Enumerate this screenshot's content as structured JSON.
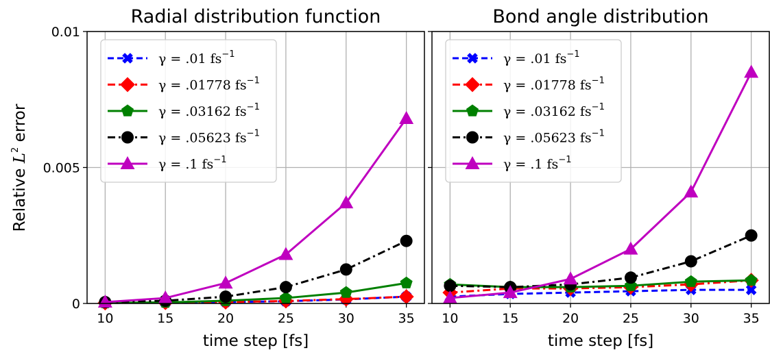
{
  "ylabel": "Relative",
  "ylabel_math": "L",
  "ylabel_sup": "2",
  "ylabel_tail": " error",
  "chart_data": [
    {
      "type": "line",
      "title": "Radial distribution function",
      "xlabel": "time step [fs]",
      "ylabel": "Relative L^2 error",
      "x": [
        10,
        15,
        20,
        25,
        30,
        35
      ],
      "xlim": [
        8.5,
        36.5
      ],
      "ylim": [
        0,
        0.01
      ],
      "xticks": [
        10,
        15,
        20,
        25,
        30,
        35
      ],
      "yticks": [
        0,
        0.005,
        0.01
      ],
      "ytick_labels": [
        "0",
        "0.005",
        "0.01"
      ],
      "grid": true,
      "legend_position": "top-left",
      "series": [
        {
          "name": "γ = .01 fs",
          "unit_sup": "−1",
          "color": "#0000ff",
          "dash": "9,5",
          "marker": "x",
          "values": [
            2e-05,
            3e-05,
            5e-05,
            8e-05,
            0.00015,
            0.00025
          ]
        },
        {
          "name": "γ = .01778 fs",
          "unit_sup": "−1",
          "color": "#ff0000",
          "dash": "11,5,3,5",
          "marker": "diamond",
          "values": [
            2e-05,
            3e-05,
            5e-05,
            9e-05,
            0.00016,
            0.00025
          ]
        },
        {
          "name": "γ = .03162 fs",
          "unit_sup": "−1",
          "color": "#008000",
          "dash": "",
          "marker": "pentagon",
          "values": [
            2e-05,
            4e-05,
            0.0001,
            0.0002,
            0.0004,
            0.00075
          ]
        },
        {
          "name": "γ = .05623 fs",
          "unit_sup": "−1",
          "color": "#000000",
          "dash": "11,5,3,5",
          "marker": "circle",
          "values": [
            5e-05,
            0.0001,
            0.00025,
            0.0006,
            0.00125,
            0.0023
          ]
        },
        {
          "name": "γ = .1 fs",
          "unit_sup": "−1",
          "color": "#bf00bf",
          "dash": "",
          "marker": "triangle",
          "values": [
            5e-05,
            0.0002,
            0.00075,
            0.0018,
            0.0037,
            0.0068
          ]
        }
      ]
    },
    {
      "type": "line",
      "title": "Bond angle distribution",
      "xlabel": "time step [fs]",
      "ylabel": "",
      "x": [
        10,
        15,
        20,
        25,
        30,
        35
      ],
      "xlim": [
        8.5,
        36.5
      ],
      "ylim": [
        0,
        0.01
      ],
      "xticks": [
        10,
        15,
        20,
        25,
        30,
        35
      ],
      "yticks": [
        0,
        0.005,
        0.01
      ],
      "ytick_labels": [],
      "grid": true,
      "legend_position": "top-left",
      "series": [
        {
          "name": "γ = .01 fs",
          "unit_sup": "−1",
          "color": "#0000ff",
          "dash": "9,5",
          "marker": "x",
          "values": [
            0.00025,
            0.00035,
            0.0004,
            0.00045,
            0.0005,
            0.0005
          ]
        },
        {
          "name": "γ = .01778 fs",
          "unit_sup": "−1",
          "color": "#ff0000",
          "dash": "11,5,3,5",
          "marker": "diamond",
          "values": [
            0.0004,
            0.00055,
            0.00055,
            0.0006,
            0.0007,
            0.00085
          ]
        },
        {
          "name": "γ = .03162 fs",
          "unit_sup": "−1",
          "color": "#008000",
          "dash": "",
          "marker": "pentagon",
          "values": [
            0.0007,
            0.0006,
            0.0006,
            0.00065,
            0.0008,
            0.00085
          ]
        },
        {
          "name": "γ = .05623 fs",
          "unit_sup": "−1",
          "color": "#000000",
          "dash": "11,5,3,5",
          "marker": "circle",
          "values": [
            0.00065,
            0.0006,
            0.0007,
            0.00095,
            0.00155,
            0.0025
          ]
        },
        {
          "name": "γ = .1 fs",
          "unit_sup": "−1",
          "color": "#bf00bf",
          "dash": "",
          "marker": "triangle",
          "values": [
            0.0002,
            0.0004,
            0.0009,
            0.002,
            0.0041,
            0.0085
          ]
        }
      ]
    }
  ]
}
